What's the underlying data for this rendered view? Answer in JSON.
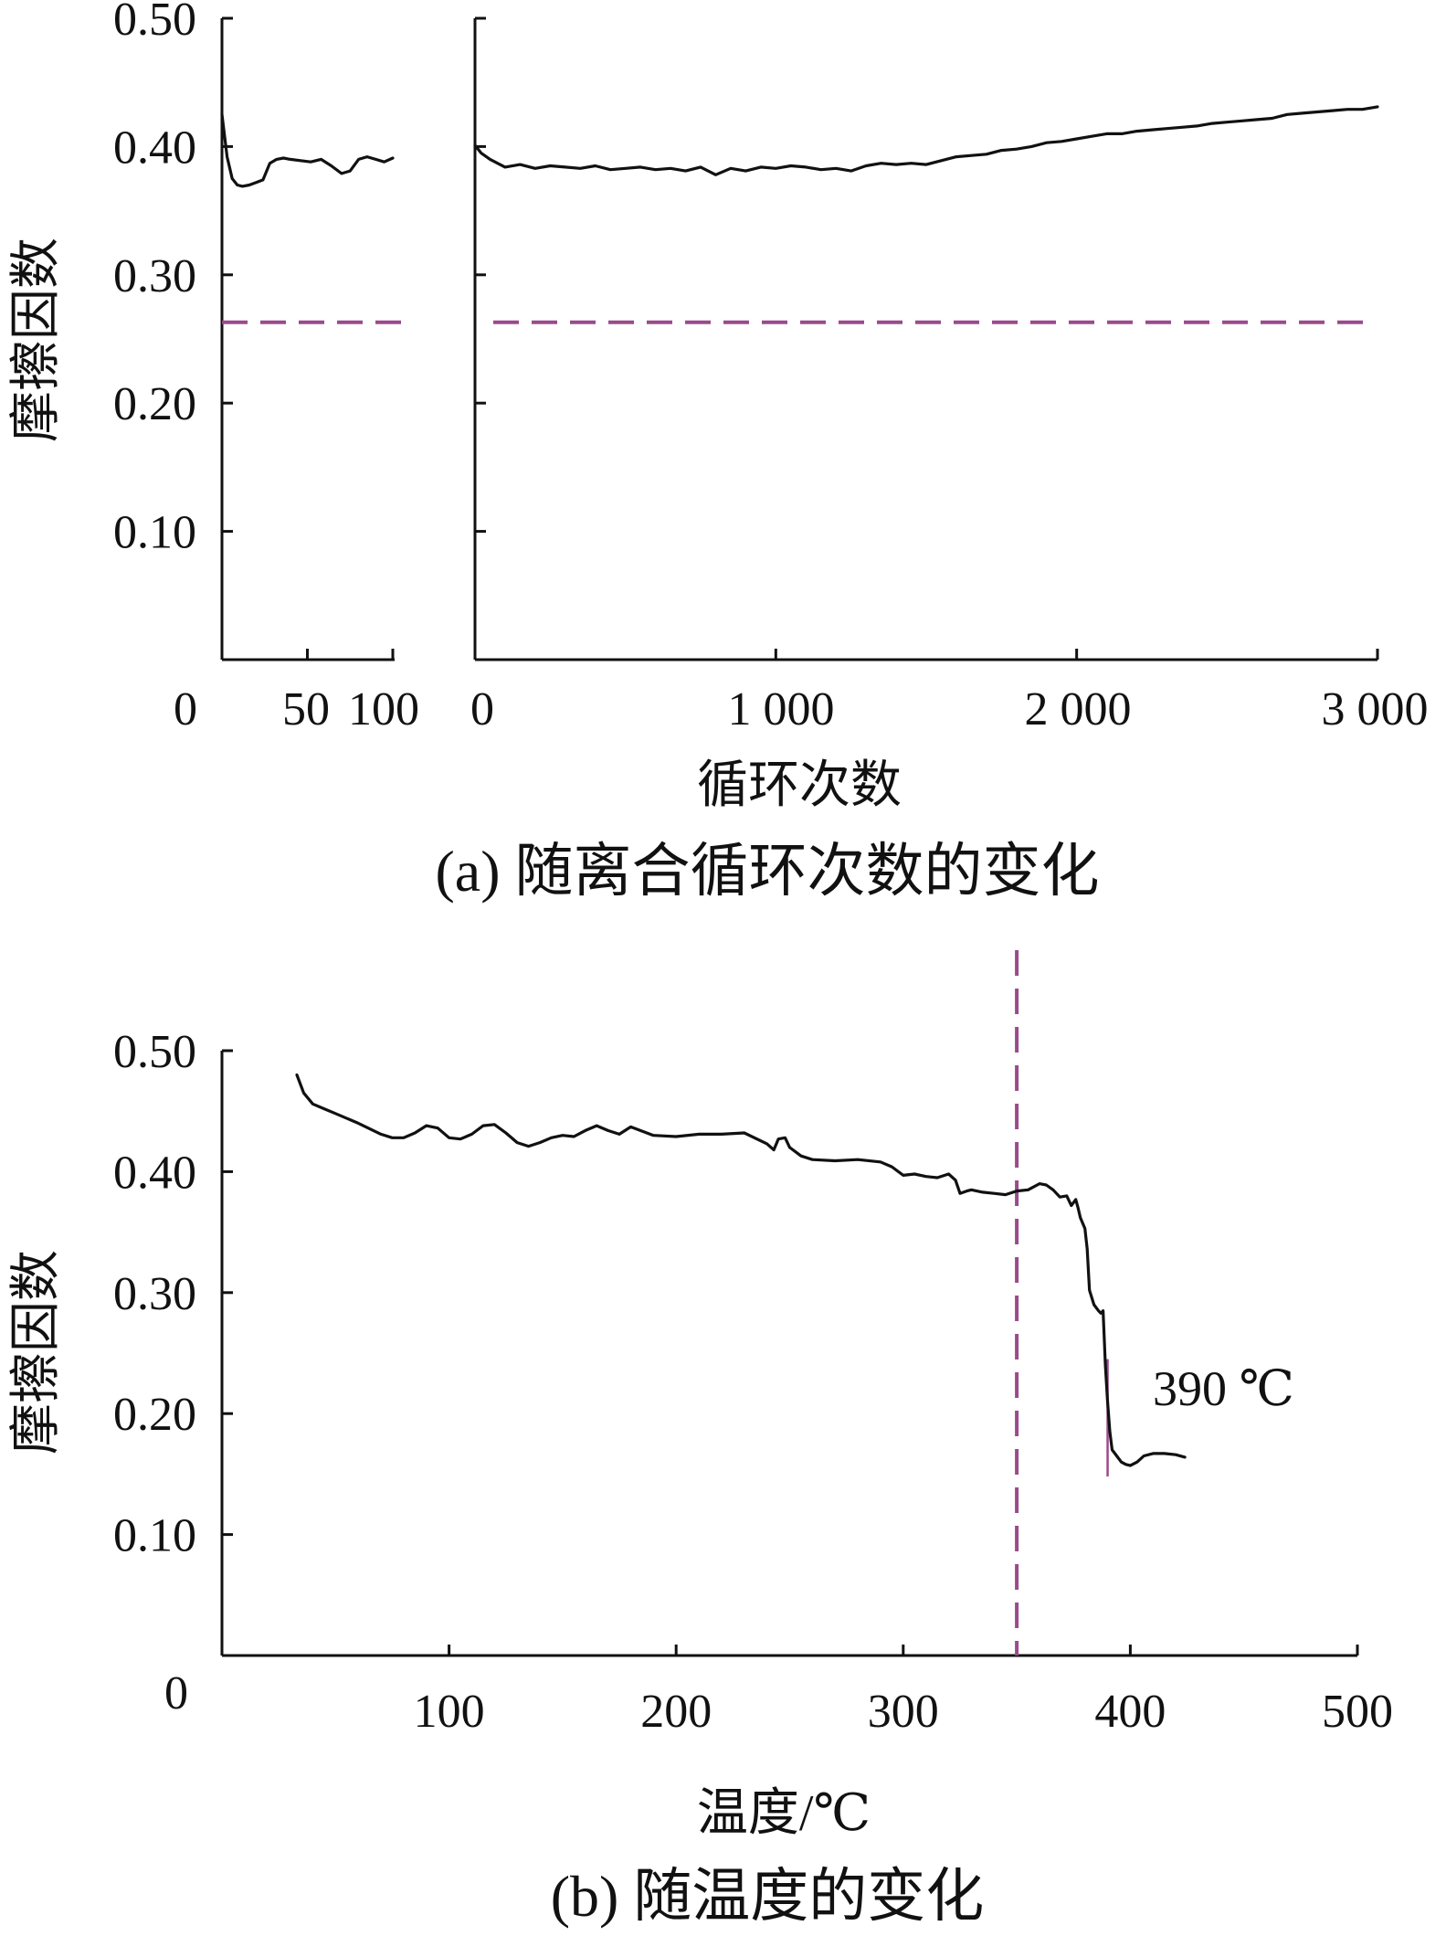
{
  "colors": {
    "line": "#111111",
    "reference": "#9b4a8c"
  },
  "chart_data": [
    {
      "type": "line",
      "caption": "(a)  随离合循环次数的变化",
      "ylabel": "摩擦因数",
      "xlabel": "循环次数",
      "ylim": [
        0,
        0.5
      ],
      "yticks": [
        "0.10",
        "0.20",
        "0.30",
        "0.40",
        "0.50"
      ],
      "reference_y": 0.263,
      "panels": [
        {
          "xlim": [
            0,
            100
          ],
          "xticks": [
            "0",
            "50",
            "100"
          ],
          "tick_values": [
            0,
            50,
            100
          ],
          "x": [
            0,
            3,
            6,
            9,
            12,
            16,
            20,
            24,
            28,
            32,
            36,
            40,
            46,
            52,
            58,
            64,
            70,
            75,
            80,
            85,
            90,
            95,
            100
          ],
          "y": [
            0.425,
            0.392,
            0.375,
            0.37,
            0.369,
            0.37,
            0.372,
            0.374,
            0.387,
            0.39,
            0.391,
            0.39,
            0.389,
            0.388,
            0.39,
            0.385,
            0.379,
            0.381,
            0.39,
            0.392,
            0.39,
            0.388,
            0.391
          ]
        },
        {
          "xlim": [
            0,
            3000
          ],
          "xticks": [
            "0",
            "1 000",
            "2 000",
            "3 000"
          ],
          "tick_values": [
            0,
            1000,
            2000,
            3000
          ],
          "x": [
            0,
            20,
            50,
            100,
            150,
            200,
            250,
            300,
            350,
            400,
            450,
            500,
            550,
            600,
            650,
            700,
            750,
            800,
            850,
            900,
            950,
            1000,
            1050,
            1100,
            1150,
            1200,
            1250,
            1300,
            1350,
            1400,
            1450,
            1500,
            1550,
            1600,
            1650,
            1700,
            1750,
            1800,
            1850,
            1900,
            1950,
            2000,
            2050,
            2100,
            2150,
            2200,
            2250,
            2300,
            2350,
            2400,
            2450,
            2500,
            2550,
            2600,
            2650,
            2700,
            2750,
            2800,
            2850,
            2900,
            2950,
            3000
          ],
          "y": [
            0.401,
            0.395,
            0.39,
            0.384,
            0.386,
            0.383,
            0.385,
            0.384,
            0.383,
            0.385,
            0.382,
            0.383,
            0.384,
            0.382,
            0.383,
            0.381,
            0.384,
            0.378,
            0.383,
            0.381,
            0.384,
            0.383,
            0.385,
            0.384,
            0.382,
            0.383,
            0.381,
            0.385,
            0.387,
            0.386,
            0.387,
            0.386,
            0.389,
            0.392,
            0.393,
            0.394,
            0.397,
            0.398,
            0.4,
            0.403,
            0.404,
            0.406,
            0.408,
            0.41,
            0.41,
            0.412,
            0.413,
            0.414,
            0.415,
            0.416,
            0.418,
            0.419,
            0.42,
            0.421,
            0.422,
            0.425,
            0.426,
            0.427,
            0.428,
            0.429,
            0.429,
            0.431
          ]
        }
      ]
    },
    {
      "type": "line",
      "caption": "(b)  随温度的变化",
      "ylabel": "摩擦因数",
      "xlabel": "温度/℃",
      "xlim": [
        0,
        500
      ],
      "ylim": [
        0,
        0.5
      ],
      "xticks": [
        "100",
        "200",
        "300",
        "400",
        "500"
      ],
      "tick_values": [
        100,
        200,
        300,
        400,
        500
      ],
      "y_origin_label": "0",
      "yticks": [
        "0.10",
        "0.20",
        "0.30",
        "0.40",
        "0.50"
      ],
      "reference_x": 350,
      "marker_x": 390,
      "annotation": "390 ℃",
      "x": [
        33,
        36,
        40,
        45,
        50,
        60,
        70,
        75,
        80,
        85,
        90,
        95,
        100,
        105,
        110,
        115,
        120,
        125,
        130,
        135,
        140,
        145,
        150,
        155,
        160,
        165,
        170,
        175,
        180,
        190,
        200,
        210,
        220,
        230,
        240,
        243,
        245,
        248,
        250,
        255,
        260,
        270,
        280,
        290,
        295,
        300,
        305,
        310,
        315,
        320,
        323,
        325,
        328,
        330,
        335,
        340,
        345,
        350,
        355,
        360,
        363,
        366,
        369,
        372,
        374,
        376,
        377,
        378,
        380,
        381,
        382,
        384,
        386,
        387,
        388,
        389,
        390,
        391,
        392,
        394,
        396,
        398,
        400,
        403,
        406,
        410,
        415,
        420,
        424
      ],
      "y": [
        0.48,
        0.465,
        0.456,
        0.452,
        0.448,
        0.44,
        0.431,
        0.428,
        0.428,
        0.432,
        0.438,
        0.436,
        0.428,
        0.427,
        0.431,
        0.438,
        0.439,
        0.432,
        0.424,
        0.421,
        0.424,
        0.428,
        0.43,
        0.429,
        0.434,
        0.438,
        0.434,
        0.431,
        0.437,
        0.43,
        0.429,
        0.431,
        0.431,
        0.432,
        0.423,
        0.418,
        0.427,
        0.428,
        0.42,
        0.413,
        0.41,
        0.409,
        0.41,
        0.408,
        0.404,
        0.397,
        0.398,
        0.396,
        0.395,
        0.398,
        0.393,
        0.382,
        0.384,
        0.385,
        0.383,
        0.382,
        0.381,
        0.384,
        0.385,
        0.39,
        0.389,
        0.385,
        0.379,
        0.38,
        0.372,
        0.377,
        0.37,
        0.362,
        0.353,
        0.336,
        0.302,
        0.29,
        0.285,
        0.283,
        0.285,
        0.24,
        0.21,
        0.185,
        0.17,
        0.165,
        0.16,
        0.158,
        0.157,
        0.16,
        0.165,
        0.167,
        0.167,
        0.166,
        0.164
      ]
    }
  ]
}
